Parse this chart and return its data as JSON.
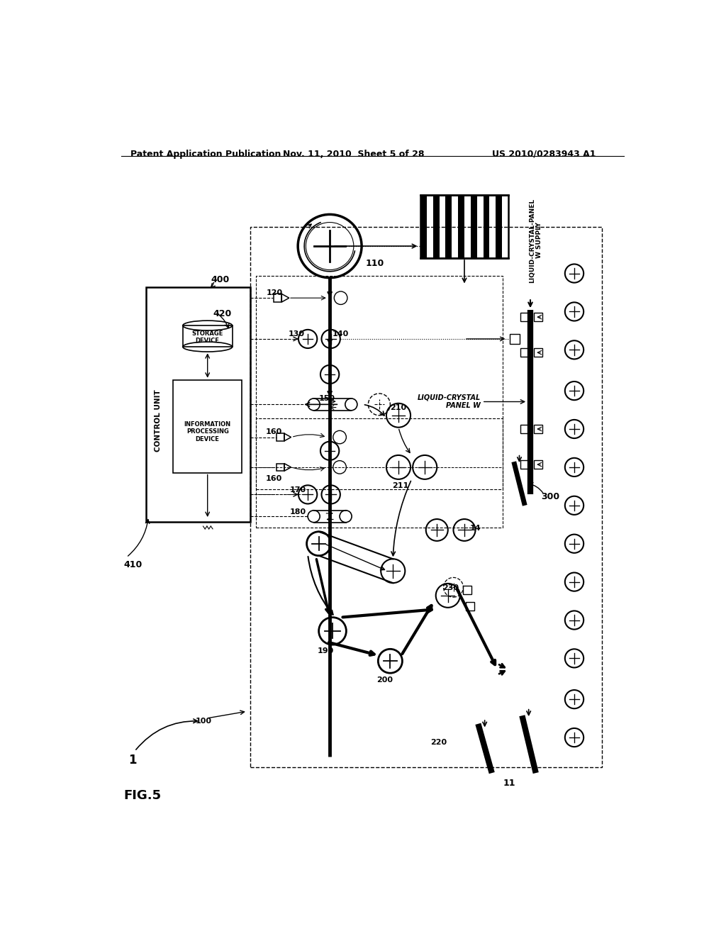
{
  "bg_color": "#ffffff",
  "header_left": "Patent Application Publication",
  "header_center": "Nov. 11, 2010  Sheet 5 of 28",
  "header_right": "US 2010/0283943 A1",
  "fig_label": "FIG.5"
}
